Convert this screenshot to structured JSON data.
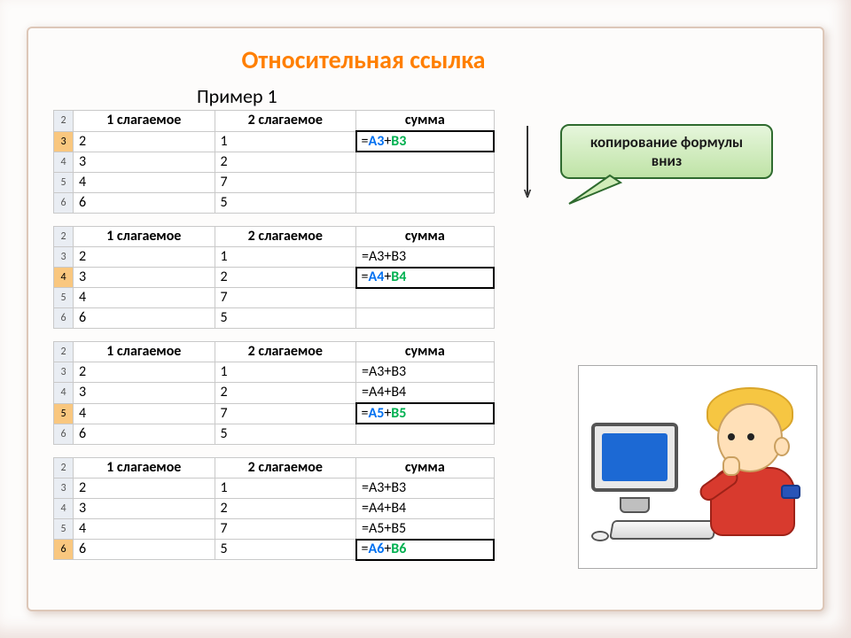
{
  "title": "Относительная ссылка",
  "subtitle": "Пример 1",
  "callout": {
    "line1": "копирование формулы",
    "line2": "вниз"
  },
  "colors": {
    "title": "#ff7f00",
    "callout_border": "#2f6b2f",
    "callout_fill_top": "#e6f6dc",
    "callout_fill_bottom": "#bfe3a6",
    "ref_blue": "#0070f0",
    "ref_green": "#00b050",
    "rowhead_bg": "#e9edf3",
    "rowhead_sel": "#f9c77f"
  },
  "tables": [
    {
      "headers": [
        "1 слагаемое",
        "2 слагаемое",
        "сумма"
      ],
      "header_rownum": "2",
      "active_row_index": 0,
      "rows": [
        {
          "num": "3",
          "a": "2",
          "b": "1",
          "c_plain": "",
          "c_refA": "A3",
          "c_refB": "B3",
          "c_colored": true
        },
        {
          "num": "4",
          "a": "3",
          "b": "2",
          "c_plain": ""
        },
        {
          "num": "5",
          "a": "4",
          "b": "7",
          "c_plain": ""
        },
        {
          "num": "6",
          "a": "6",
          "b": "5",
          "c_plain": ""
        }
      ]
    },
    {
      "headers": [
        "1 слагаемое",
        "2 слагаемое",
        "сумма"
      ],
      "header_rownum": "2",
      "active_row_index": 1,
      "rows": [
        {
          "num": "3",
          "a": "2",
          "b": "1",
          "c_plain": "=A3+B3"
        },
        {
          "num": "4",
          "a": "3",
          "b": "2",
          "c_plain": "",
          "c_refA": "A4",
          "c_refB": "B4",
          "c_colored": true
        },
        {
          "num": "5",
          "a": "4",
          "b": "7",
          "c_plain": ""
        },
        {
          "num": "6",
          "a": "6",
          "b": "5",
          "c_plain": ""
        }
      ]
    },
    {
      "headers": [
        "1 слагаемое",
        "2 слагаемое",
        "сумма"
      ],
      "header_rownum": "2",
      "active_row_index": 2,
      "rows": [
        {
          "num": "3",
          "a": "2",
          "b": "1",
          "c_plain": "=A3+B3"
        },
        {
          "num": "4",
          "a": "3",
          "b": "2",
          "c_plain": "=A4+B4"
        },
        {
          "num": "5",
          "a": "4",
          "b": "7",
          "c_plain": "",
          "c_refA": "A5",
          "c_refB": "B5",
          "c_colored": true
        },
        {
          "num": "6",
          "a": "6",
          "b": "5",
          "c_plain": ""
        }
      ]
    },
    {
      "headers": [
        "1 слагаемое",
        "2 слагаемое",
        "сумма"
      ],
      "header_rownum": "2",
      "active_row_index": 3,
      "rows": [
        {
          "num": "3",
          "a": "2",
          "b": "1",
          "c_plain": "=A3+B3"
        },
        {
          "num": "4",
          "a": "3",
          "b": "2",
          "c_plain": "=A4+B4"
        },
        {
          "num": "5",
          "a": "4",
          "b": "7",
          "c_plain": "=A5+B5"
        },
        {
          "num": "6",
          "a": "6",
          "b": "5",
          "c_plain": "",
          "c_refA": "A6",
          "c_refB": "B6",
          "c_colored": true
        }
      ]
    }
  ]
}
